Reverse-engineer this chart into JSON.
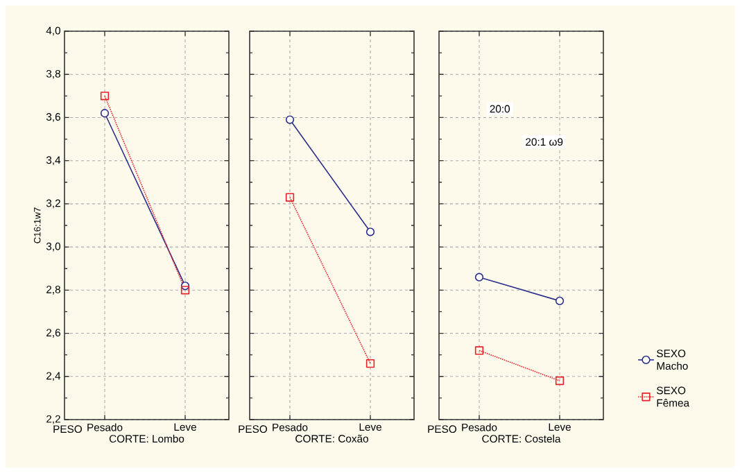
{
  "chart_data": [
    {
      "type": "line",
      "xlabel": "CORTE: Lombo",
      "ylabel": "C16:1w7",
      "categories": [
        "Pesado",
        "Leve"
      ],
      "series": [
        {
          "color": "#2b2e8c",
          "marker": "circle",
          "line_style": "solid",
          "values": [
            3.62,
            2.82
          ]
        },
        {
          "color": "#e8202a",
          "marker": "square",
          "line_style": "dotted",
          "values": [
            3.7,
            2.8
          ]
        }
      ],
      "ylim": [
        2.2,
        4.0
      ],
      "yticks": [
        {
          "value": 2.2,
          "label": "2,2"
        },
        {
          "value": 2.4,
          "label": "2,4"
        },
        {
          "value": 2.6,
          "label": "2,6"
        },
        {
          "value": 2.8,
          "label": "2,8"
        },
        {
          "value": 3.0,
          "label": "3,0"
        },
        {
          "value": 3.2,
          "label": "3,2"
        },
        {
          "value": 3.4,
          "label": "3,4"
        },
        {
          "value": 3.6,
          "label": "3,6"
        },
        {
          "value": 3.8,
          "label": "3,8"
        },
        {
          "value": 4.0,
          "label": "4,0"
        }
      ],
      "grid": true,
      "annotations": [
        "PESO"
      ]
    },
    {
      "type": "line",
      "xlabel": "CORTE: Coxão",
      "categories": [
        "Pesado",
        "Leve"
      ],
      "series": [
        {
          "color": "#2b2e8c",
          "marker": "circle",
          "line_style": "solid",
          "values": [
            3.59,
            3.07
          ]
        },
        {
          "color": "#e8202a",
          "marker": "square",
          "line_style": "dotted",
          "values": [
            3.23,
            2.46
          ]
        }
      ],
      "ylim": [
        2.2,
        4.0
      ],
      "yticks": [
        2.2,
        2.4,
        2.6,
        2.8,
        3.0,
        3.2,
        3.4,
        3.6,
        3.8,
        4.0
      ],
      "tick_labels": "x",
      "grid": true,
      "annotations": [
        "PESO"
      ]
    },
    {
      "type": "line",
      "xlabel": "CORTE: Costela",
      "categories": [
        "Pesado",
        "Leve"
      ],
      "series": [
        {
          "name": "SEXO Macho",
          "color": "#2b2e8c",
          "marker": "circle",
          "line_style": "solid",
          "values": [
            2.86,
            2.75
          ]
        },
        {
          "name": "SEXO Fêmea",
          "color": "#e8202a",
          "marker": "square",
          "line_style": "dotted",
          "values": [
            2.52,
            2.38
          ]
        }
      ],
      "ylim": [
        2.2,
        4.0
      ],
      "yticks": [
        2.2,
        2.4,
        2.6,
        2.8,
        3.0,
        3.2,
        3.4,
        3.6,
        3.8,
        4.0
      ],
      "tick_labels": "x",
      "grid": true,
      "legend": "right",
      "annotations": [
        "PESO",
        "20:0",
        "20:1 ω9"
      ]
    }
  ]
}
